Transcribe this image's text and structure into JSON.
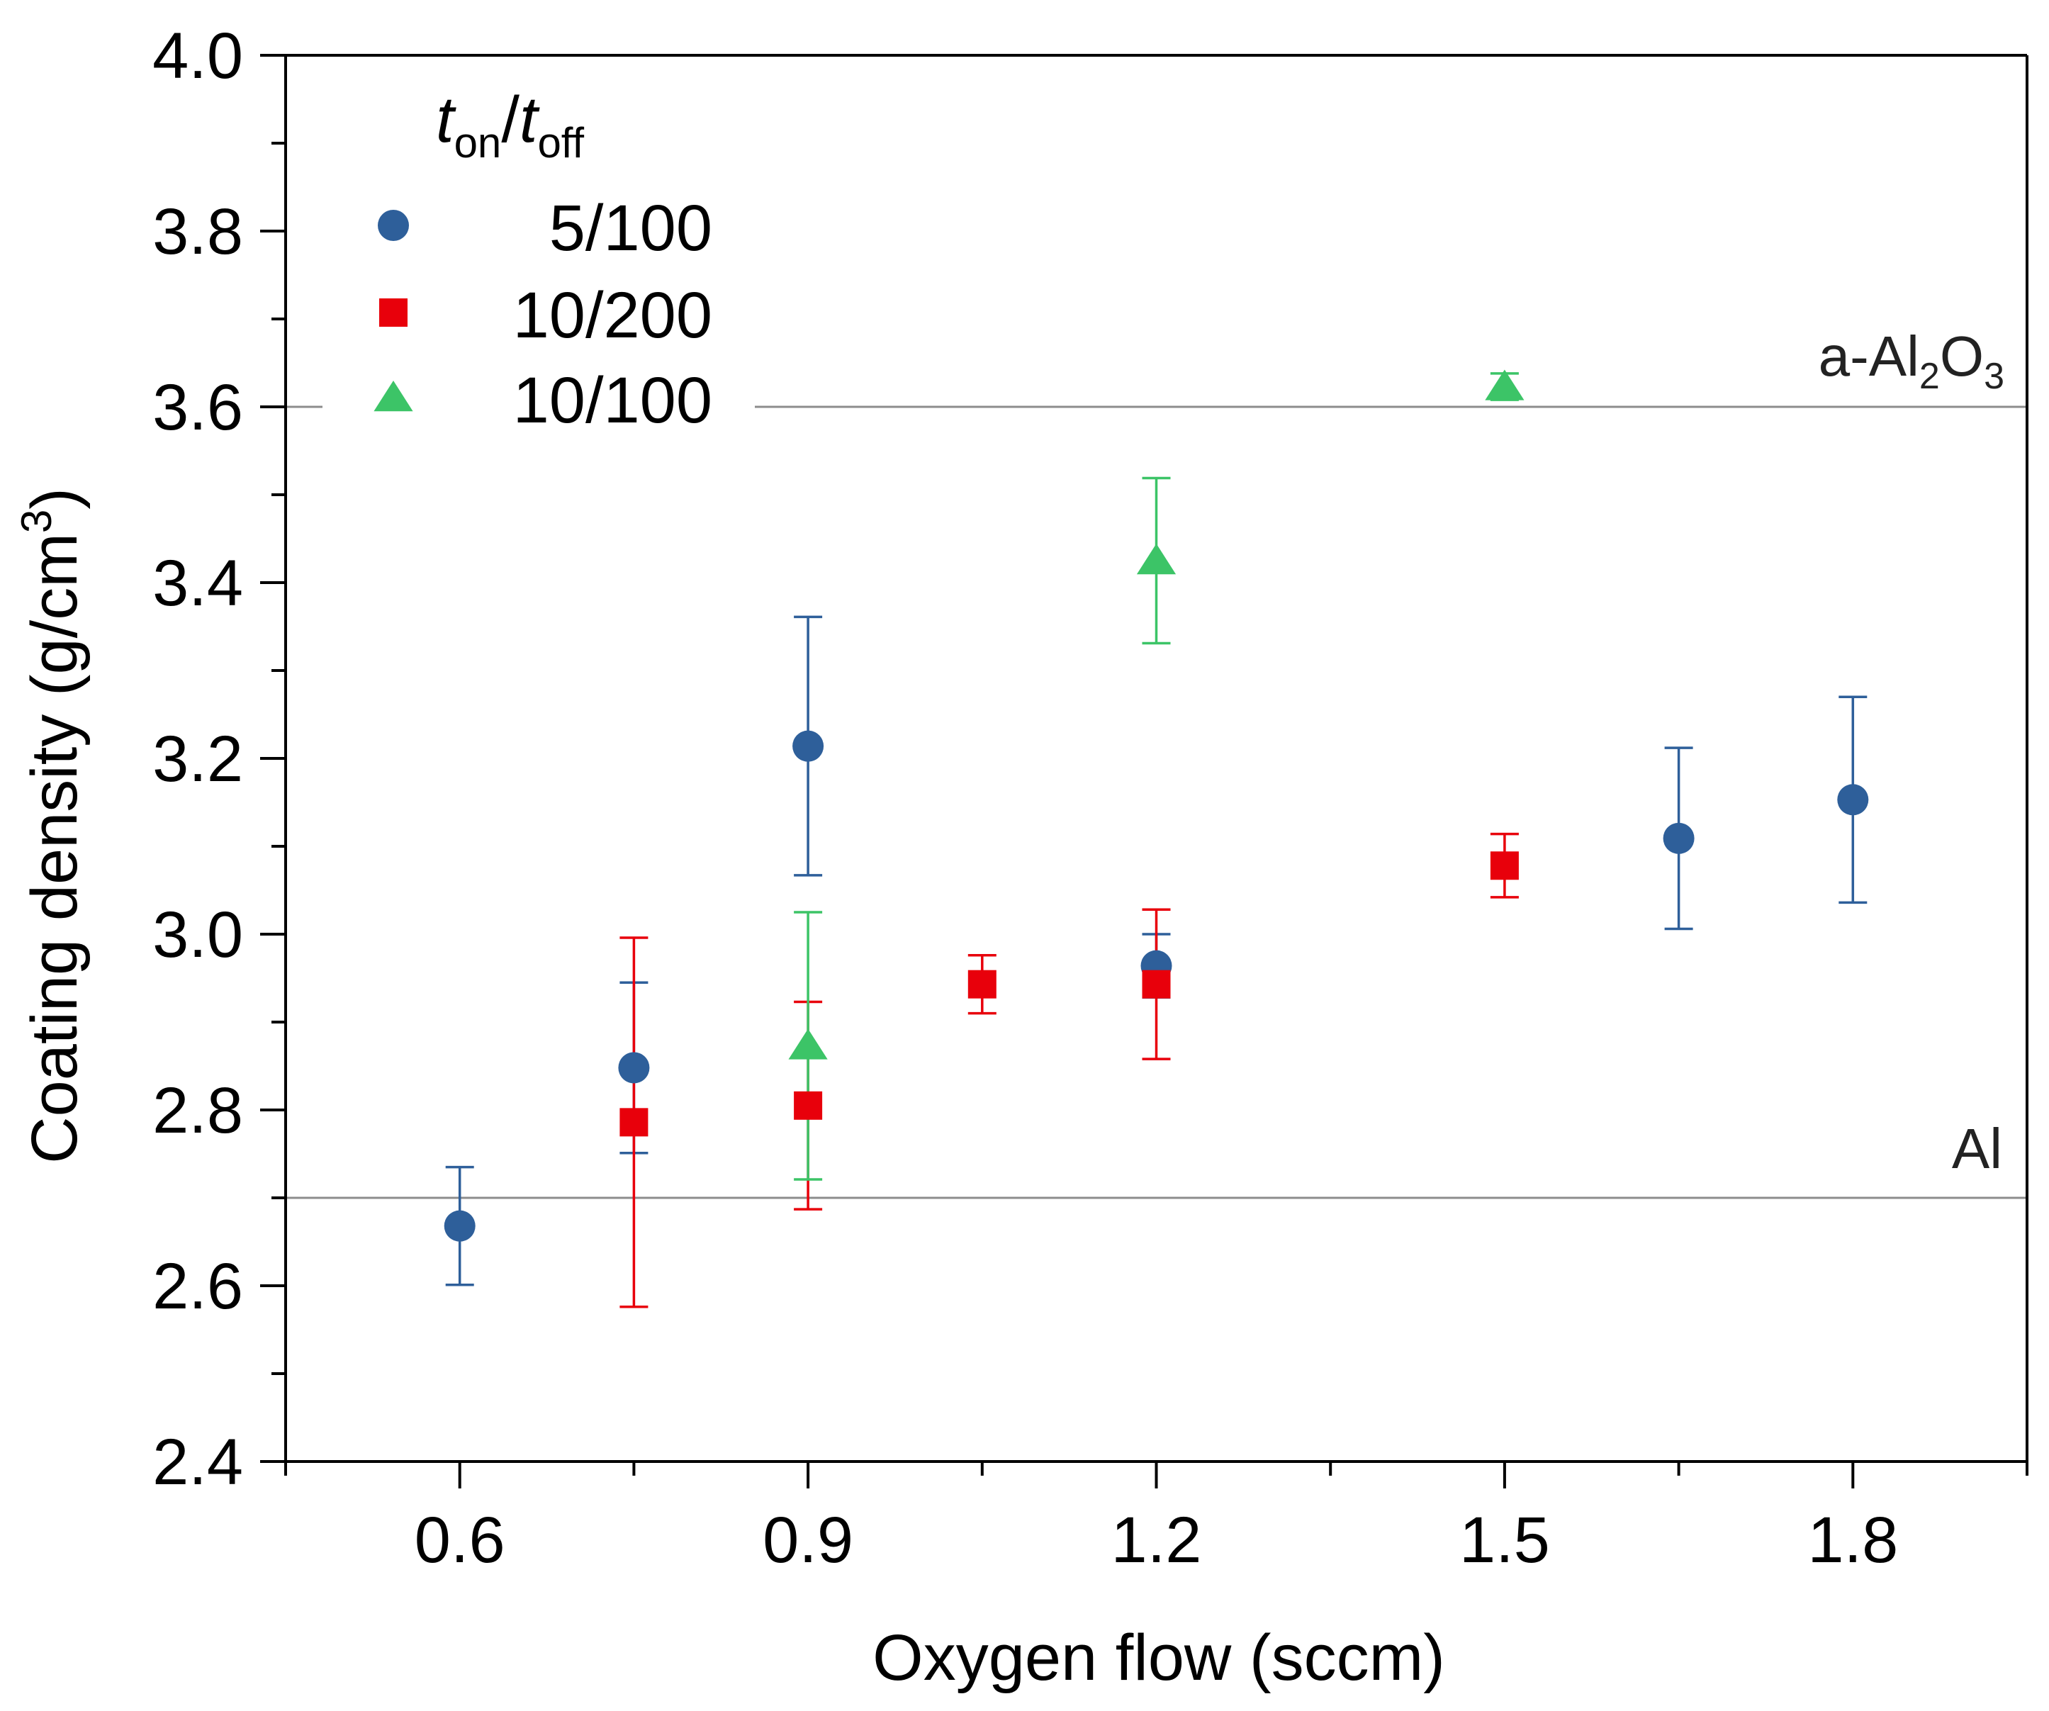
{
  "chart_data": {
    "type": "scatter",
    "title": "",
    "xlabel": "Oxygen flow (sccm)",
    "ylabel": "Coating density (g/cm",
    "ylabel_sup": "3",
    "ylabel_close": ")",
    "xlim": [
      0.45,
      1.95
    ],
    "ylim": [
      2.4,
      4.0
    ],
    "x_ticks": [
      0.6,
      0.9,
      1.2,
      1.5,
      1.8
    ],
    "x_tick_labels": [
      "0.6",
      "0.9",
      "1.2",
      "1.5",
      "1.8"
    ],
    "y_ticks": [
      2.4,
      2.6,
      2.8,
      3.0,
      3.2,
      3.4,
      3.6,
      3.8,
      4.0
    ],
    "y_tick_labels": [
      "2.4",
      "2.6",
      "2.8",
      "3.0",
      "3.2",
      "3.4",
      "3.6",
      "3.8",
      "4.0"
    ],
    "grid": false,
    "legend": {
      "title_t1": "t",
      "title_sub1": "on",
      "title_slash": "/",
      "title_t2": "t",
      "title_sub2": "off",
      "placement": "top-left"
    },
    "reference_lines": [
      {
        "name": "a-Al2O3",
        "y": 3.6,
        "label_prefix": "a-Al",
        "label_sub1": "2",
        "label_mid": "O",
        "label_sub2": "3",
        "color": "#8c8c8c"
      },
      {
        "name": "Al",
        "y": 2.7,
        "label": "Al",
        "color": "#8c8c8c"
      }
    ],
    "series": [
      {
        "name": "5/100",
        "marker": "circle",
        "color": "#2e5f9a",
        "points": [
          {
            "x": 0.6,
            "y": 2.668,
            "err": 0.067
          },
          {
            "x": 0.75,
            "y": 2.848,
            "err": 0.097
          },
          {
            "x": 0.9,
            "y": 3.214,
            "err": 0.147
          },
          {
            "x": 1.2,
            "y": 2.964,
            "err": 0.036
          },
          {
            "x": 1.65,
            "y": 3.109,
            "err": 0.103
          },
          {
            "x": 1.8,
            "y": 3.153,
            "err": 0.117
          }
        ]
      },
      {
        "name": "10/200",
        "marker": "square",
        "color": "#e8000b",
        "points": [
          {
            "x": 0.75,
            "y": 2.786,
            "err": 0.21
          },
          {
            "x": 0.9,
            "y": 2.805,
            "err": 0.118
          },
          {
            "x": 1.05,
            "y": 2.943,
            "err": 0.033
          },
          {
            "x": 1.2,
            "y": 2.943,
            "err": 0.085
          },
          {
            "x": 1.5,
            "y": 3.078,
            "err": 0.036
          }
        ]
      },
      {
        "name": "10/100",
        "marker": "triangle",
        "color": "#3cc467",
        "points": [
          {
            "x": 0.9,
            "y": 2.873,
            "err": 0.152
          },
          {
            "x": 1.2,
            "y": 3.425,
            "err": 0.094
          },
          {
            "x": 1.5,
            "y": 3.623,
            "err": 0.015
          }
        ]
      }
    ]
  }
}
